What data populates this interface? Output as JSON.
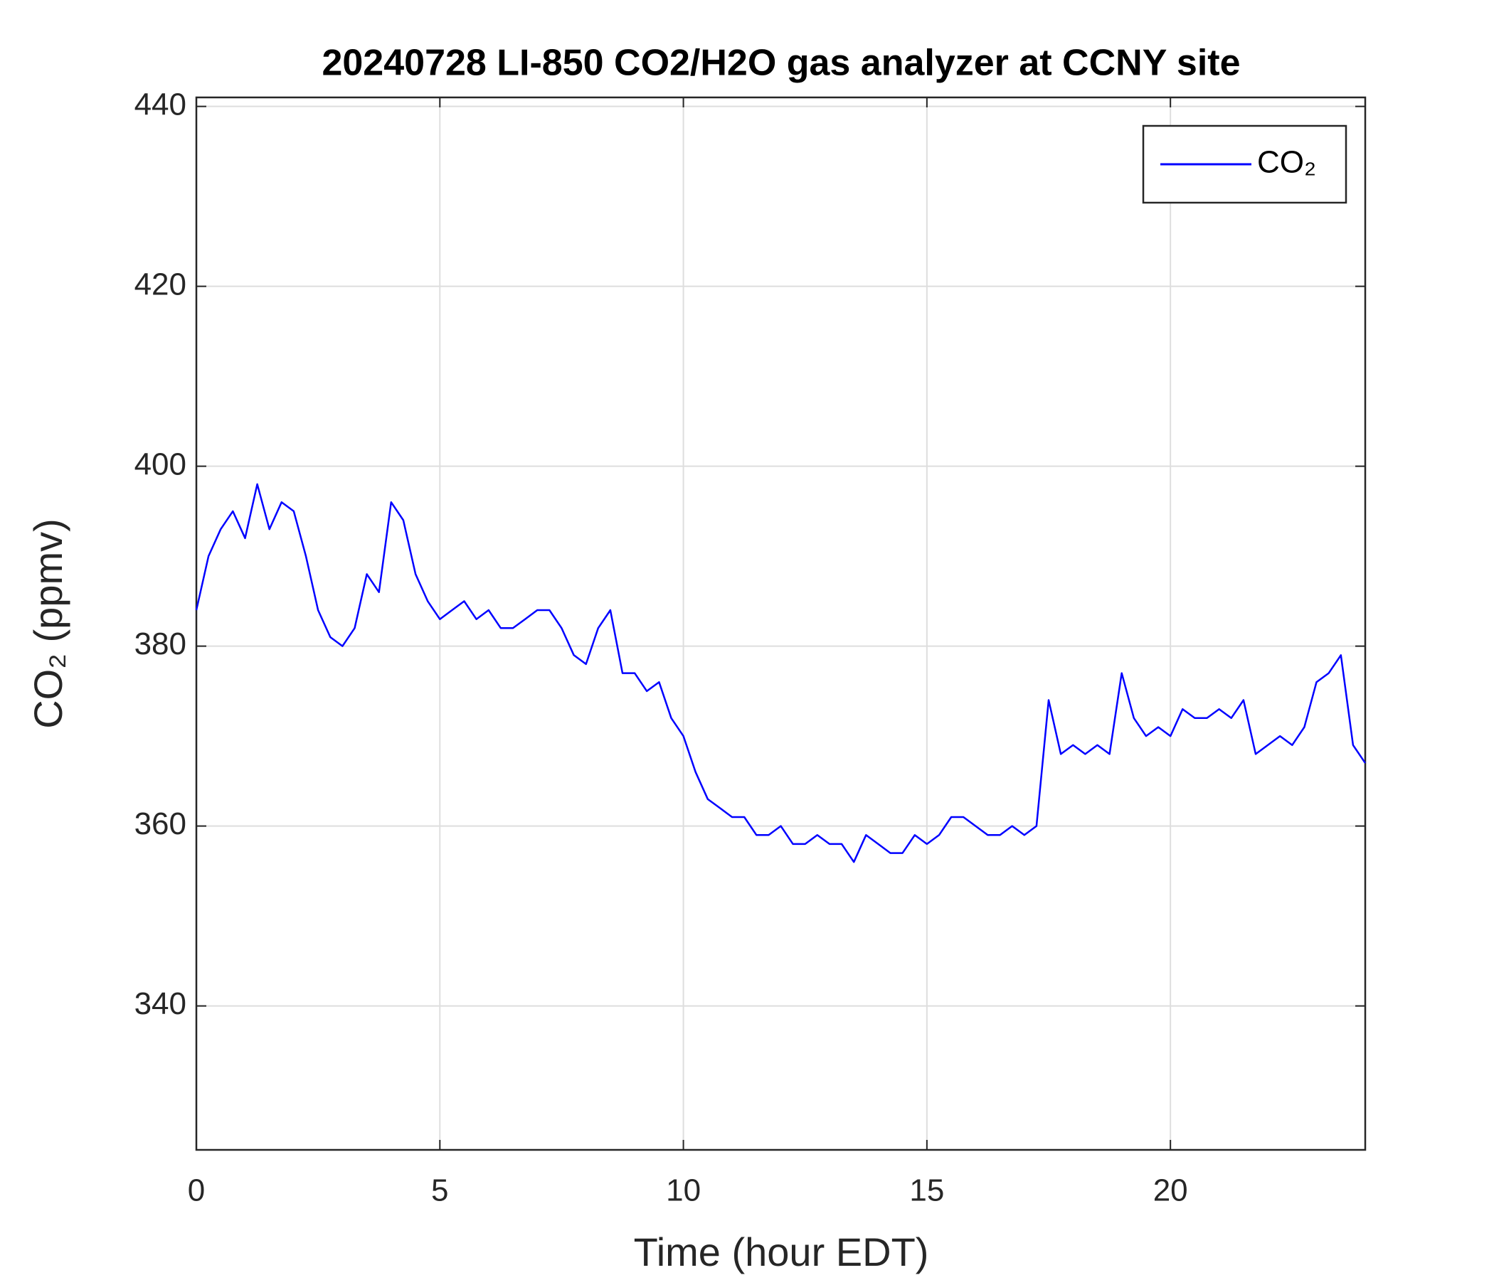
{
  "chart_data": {
    "type": "line",
    "title": "20240728 LI-850 CO2/H2O gas analyzer at CCNY site",
    "x_label": "Time (hour EDT)",
    "y_label": "CO₂ (ppmv)",
    "x": [
      0,
      0.25,
      0.5,
      0.75,
      1,
      1.25,
      1.5,
      1.75,
      2,
      2.25,
      2.5,
      2.75,
      3,
      3.25,
      3.5,
      3.75,
      4,
      4.25,
      4.5,
      4.75,
      5,
      5.25,
      5.5,
      5.75,
      6,
      6.25,
      6.5,
      6.75,
      7,
      7.25,
      7.5,
      7.75,
      8,
      8.25,
      8.5,
      8.75,
      9,
      9.25,
      9.5,
      9.75,
      10,
      10.25,
      10.5,
      10.75,
      11,
      11.25,
      11.5,
      11.75,
      12,
      12.25,
      12.5,
      12.75,
      13,
      13.25,
      13.5,
      13.75,
      14,
      14.25,
      14.5,
      14.75,
      15,
      15.25,
      15.5,
      15.75,
      16,
      16.25,
      16.5,
      16.75,
      17,
      17.25,
      17.5,
      17.75,
      18,
      18.25,
      18.5,
      18.75,
      19,
      19.25,
      19.5,
      19.75,
      20,
      20.25,
      20.5,
      20.75,
      21,
      21.25,
      21.5,
      21.75,
      22,
      22.25,
      22.5,
      22.75,
      23,
      23.25,
      23.5,
      23.75,
      24
    ],
    "series": [
      {
        "name": "CO₂",
        "color": "#0000ff",
        "values": [
          384,
          390,
          393,
          395,
          392,
          398,
          393,
          396,
          395,
          390,
          384,
          381,
          380,
          382,
          388,
          386,
          396,
          394,
          388,
          385,
          383,
          384,
          385,
          383,
          384,
          382,
          382,
          383,
          384,
          384,
          382,
          379,
          378,
          382,
          384,
          377,
          377,
          375,
          376,
          372,
          370,
          366,
          363,
          362,
          361,
          361,
          359,
          359,
          360,
          358,
          358,
          359,
          358,
          358,
          356,
          359,
          358,
          357,
          357,
          359,
          358,
          359,
          361,
          361,
          360,
          359,
          359,
          360,
          359,
          360,
          374,
          368,
          369,
          368,
          369,
          368,
          377,
          372,
          370,
          371,
          370,
          373,
          372,
          372,
          373,
          372,
          374,
          368,
          369,
          370,
          369,
          371,
          376,
          377,
          379,
          369,
          367
        ]
      }
    ],
    "xlim": [
      0,
      24
    ],
    "ylim": [
      324,
      441
    ],
    "xticks": [
      0,
      5,
      10,
      15,
      20
    ],
    "yticks": [
      340,
      360,
      380,
      400,
      420,
      440
    ],
    "grid": true,
    "legend": "upper right"
  }
}
